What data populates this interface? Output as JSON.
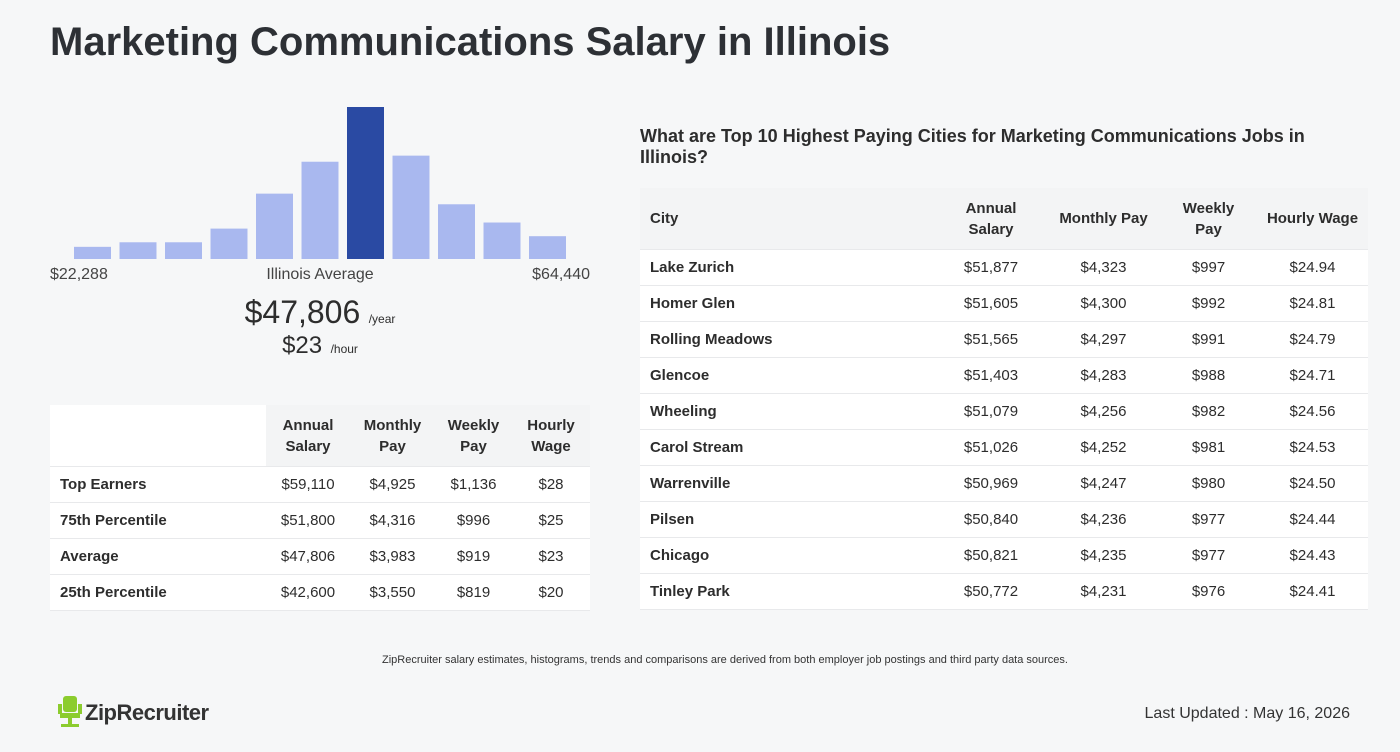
{
  "title": "Marketing Communications Salary in Illinois",
  "histogram": {
    "type": "bar",
    "values": [
      8,
      11,
      11,
      20,
      43,
      64,
      100,
      68,
      36,
      24,
      15
    ],
    "ylim": [
      0,
      100
    ],
    "color": "#a9b8ef",
    "highlight_color": "#2a4aa3",
    "highlight_index": 6
  },
  "range": {
    "min": "$22,288",
    "label": "Illinois Average",
    "max": "$64,440"
  },
  "average": {
    "annual": "$47,806",
    "annual_unit": "/year",
    "hourly": "$23",
    "hourly_unit": "/hour"
  },
  "summary_table": {
    "header": [
      "Annual Salary",
      "Monthly Pay",
      "Weekly Pay",
      "Hourly Wage"
    ],
    "rows": [
      [
        "Top Earners",
        "$59,110",
        "$4,925",
        "$1,136",
        "$28"
      ],
      [
        "75th Percentile",
        "$51,800",
        "$4,316",
        "$996",
        "$25"
      ],
      [
        "Average",
        "$47,806",
        "$3,983",
        "$919",
        "$23"
      ],
      [
        "25th Percentile",
        "$42,600",
        "$3,550",
        "$819",
        "$20"
      ]
    ]
  },
  "cities_table": {
    "title": "What are Top 10 Highest Paying Cities for Marketing Communications Jobs in Illinois?",
    "header": [
      "City",
      "Annual Salary",
      "Monthly Pay",
      "Weekly Pay",
      "Hourly Wage"
    ],
    "rows": [
      [
        "Lake Zurich",
        "$51,877",
        "$4,323",
        "$997",
        "$24.94"
      ],
      [
        "Homer Glen",
        "$51,605",
        "$4,300",
        "$992",
        "$24.81"
      ],
      [
        "Rolling Meadows",
        "$51,565",
        "$4,297",
        "$991",
        "$24.79"
      ],
      [
        "Glencoe",
        "$51,403",
        "$4,283",
        "$988",
        "$24.71"
      ],
      [
        "Wheeling",
        "$51,079",
        "$4,256",
        "$982",
        "$24.56"
      ],
      [
        "Carol Stream",
        "$51,026",
        "$4,252",
        "$981",
        "$24.53"
      ],
      [
        "Warrenville",
        "$50,969",
        "$4,247",
        "$980",
        "$24.50"
      ],
      [
        "Pilsen",
        "$50,840",
        "$4,236",
        "$977",
        "$24.44"
      ],
      [
        "Chicago",
        "$50,821",
        "$4,235",
        "$977",
        "$24.43"
      ],
      [
        "Tinley Park",
        "$50,772",
        "$4,231",
        "$976",
        "$24.41"
      ]
    ]
  },
  "footer_note": "ZipRecruiter salary estimates, histograms, trends and comparisons are derived from both employer job postings and third party data sources.",
  "logo": "ZipRecruiter",
  "last_updated": "Last Updated : May 16, 2026"
}
